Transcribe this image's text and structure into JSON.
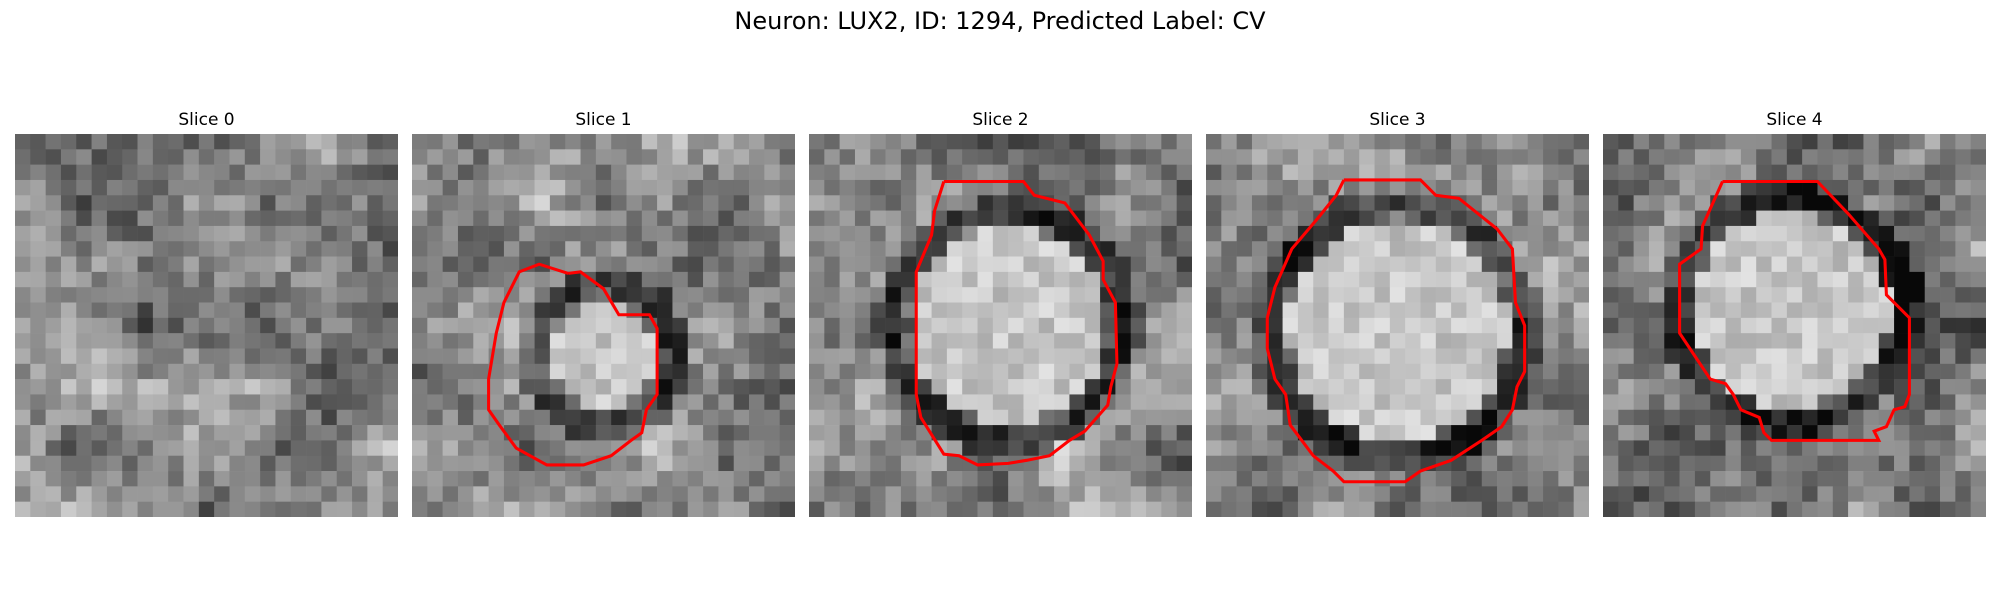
{
  "figure": {
    "title": "Neuron: LUX2, ID: 1294, Predicted Label: CV"
  },
  "panels": [
    {
      "title": "Slice 0",
      "contour": false
    },
    {
      "title": "Slice 1",
      "contour": true
    },
    {
      "title": "Slice 2",
      "contour": true
    },
    {
      "title": "Slice 3",
      "contour": true
    },
    {
      "title": "Slice 4",
      "contour": true
    }
  ],
  "colors": {
    "contour": "#ff0000"
  }
}
